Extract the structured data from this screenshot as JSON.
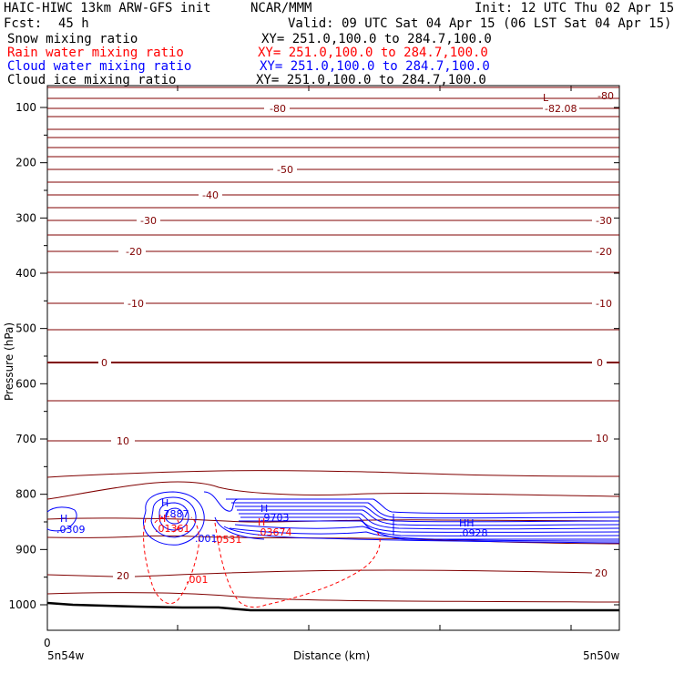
{
  "header": {
    "title_left": "HAIC-HIWC 13km ARW-GFS init",
    "title_right": "NCAR/MMM",
    "init": "Init: 12 UTC Thu 02 Apr 15",
    "fcst_label": "Fcst:",
    "fcst_value": "45 h",
    "valid": "Valid: 09 UTC Sat 04 Apr 15 (06 LST Sat 04 Apr 15)",
    "fields": [
      {
        "label": "Snow mixing ratio",
        "xy": "XY= 251.0,100.0 to 284.7,100.0",
        "color": "#000000"
      },
      {
        "label": "Rain water mixing ratio",
        "xy": "XY= 251.0,100.0 to 284.7,100.0",
        "color": "#ff0000"
      },
      {
        "label": "Cloud water mixing ratio",
        "xy": "XY= 251.0,100.0 to 284.7,100.0",
        "color": "#0000ff"
      },
      {
        "label": "Cloud ice mixing ratio",
        "xy": "XY= 251.0,100.0 to 284.7,100.0",
        "color": "#000000"
      }
    ]
  },
  "chart_data": {
    "type": "line",
    "title": "",
    "xlabel": "Distance (km)",
    "ylabel": "Pressure (hPa)",
    "x_start_label": "5n54w",
    "x_end_label": "5n50w",
    "x_zero_label": "0",
    "yticks": [
      100,
      200,
      300,
      400,
      500,
      600,
      700,
      800,
      900,
      1000
    ],
    "ylim": [
      1050,
      80
    ],
    "isotherm_color": "#800000",
    "isotherm_labels": [
      {
        "text": "-80",
        "p": 100
      },
      {
        "text": "-80",
        "p": 88
      },
      {
        "text": "-82.08",
        "p": 100
      },
      {
        "text": "L",
        "p": 88
      },
      {
        "text": "-50",
        "p": 213
      },
      {
        "text": "-40",
        "p": 245
      },
      {
        "text": "-30",
        "p": 302
      },
      {
        "text": "-30",
        "p": 302
      },
      {
        "text": "-20",
        "p": 358
      },
      {
        "text": "-20",
        "p": 358
      },
      {
        "text": "-10",
        "p": 478
      },
      {
        "text": "-10",
        "p": 478
      },
      {
        "text": "0",
        "p": 563
      },
      {
        "text": "0",
        "p": 563
      },
      {
        "text": "10",
        "p": 717
      },
      {
        "text": "10",
        "p": 717
      },
      {
        "text": "20",
        "p": 957
      },
      {
        "text": "20",
        "p": 950
      }
    ],
    "field_labels": [
      {
        "text": "H",
        "color": "#0000ff"
      },
      {
        "text": ".0309",
        "color": "#0000ff"
      },
      {
        "text": "H",
        "color": "#0000ff"
      },
      {
        "text": ".7887",
        "color": "#0000ff"
      },
      {
        "text": "H",
        "color": "#ff0000"
      },
      {
        "text": ".01361",
        "color": "#ff0000"
      },
      {
        "text": ".001",
        "color": "#0000ff"
      },
      {
        "text": ".001",
        "color": "#ff0000"
      },
      {
        "text": ".0531",
        "color": "#ff0000"
      },
      {
        "text": "H",
        "color": "#0000ff"
      },
      {
        "text": ".9703",
        "color": "#0000ff"
      },
      {
        "text": "H",
        "color": "#ff0000"
      },
      {
        "text": ".03674",
        "color": "#ff0000"
      },
      {
        "text": "HH",
        "color": "#0000ff"
      },
      {
        "text": ".0928",
        "color": "#0000ff"
      }
    ]
  }
}
